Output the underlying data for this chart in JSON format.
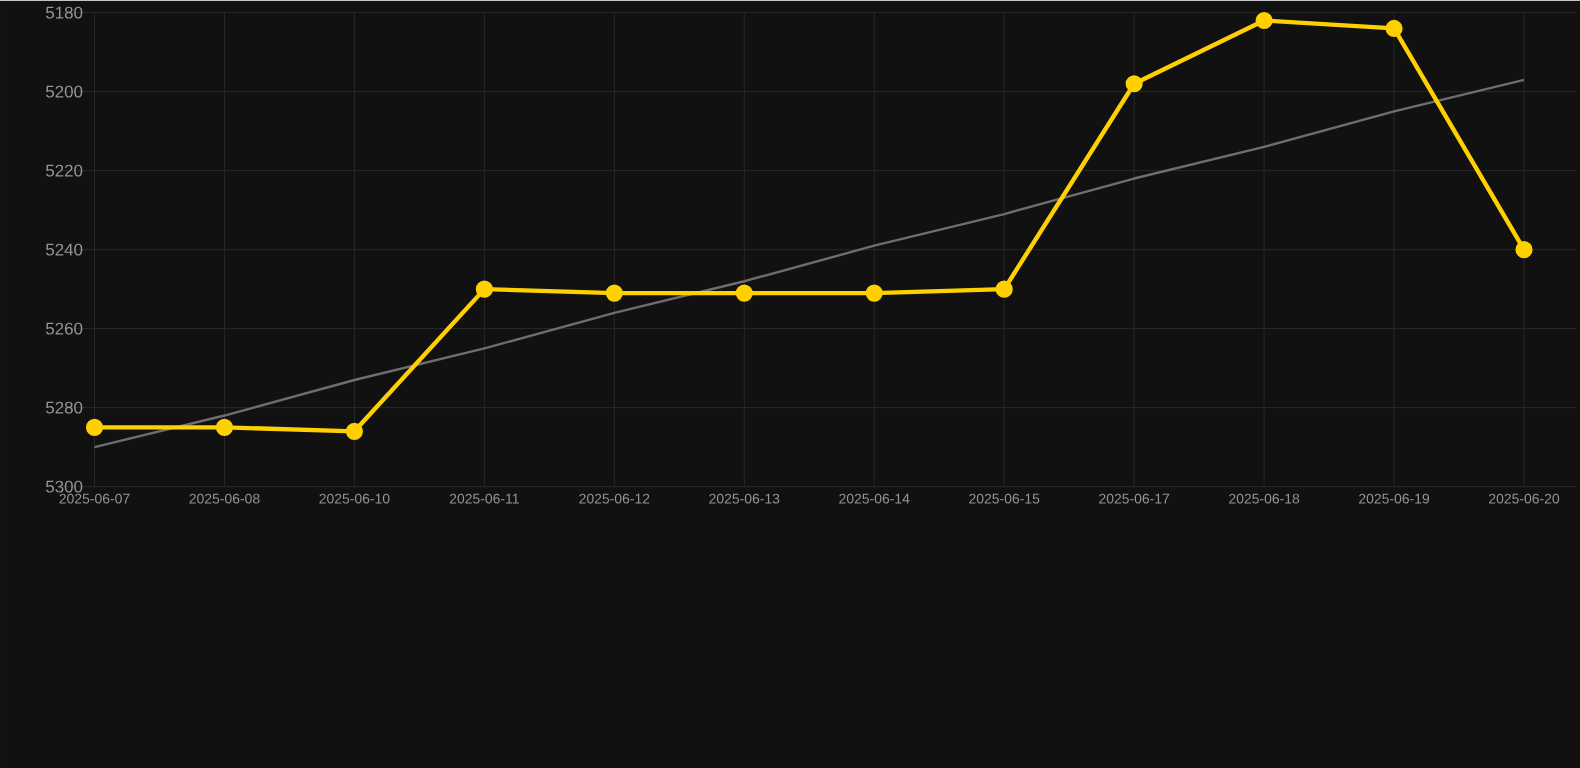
{
  "chart_data": {
    "type": "line",
    "categories": [
      "2025-06-07",
      "2025-06-08",
      "2025-06-10",
      "2025-06-11",
      "2025-06-12",
      "2025-06-13",
      "2025-06-14",
      "2025-06-15",
      "2025-06-17",
      "2025-06-18",
      "2025-06-19",
      "2025-06-20"
    ],
    "series": [
      {
        "color": "#ffd000",
        "values": [
          5285,
          5285,
          5286,
          5250,
          5251,
          5251,
          5251,
          5250,
          5198,
          5182,
          5184,
          5240
        ],
        "marker": "circle"
      },
      {
        "type": "line",
        "color": "#6e6e6e",
        "values": [
          5290,
          5282,
          5273,
          5265,
          5256,
          5248,
          5239,
          5231,
          5222,
          5214,
          5205,
          5197
        ],
        "marker": "none"
      }
    ],
    "ylim": [
      5300,
      5180
    ],
    "yticks": [
      5180,
      5200,
      5220,
      5240,
      5260,
      5280,
      5300
    ],
    "grid": true,
    "line_style": "solid"
  }
}
